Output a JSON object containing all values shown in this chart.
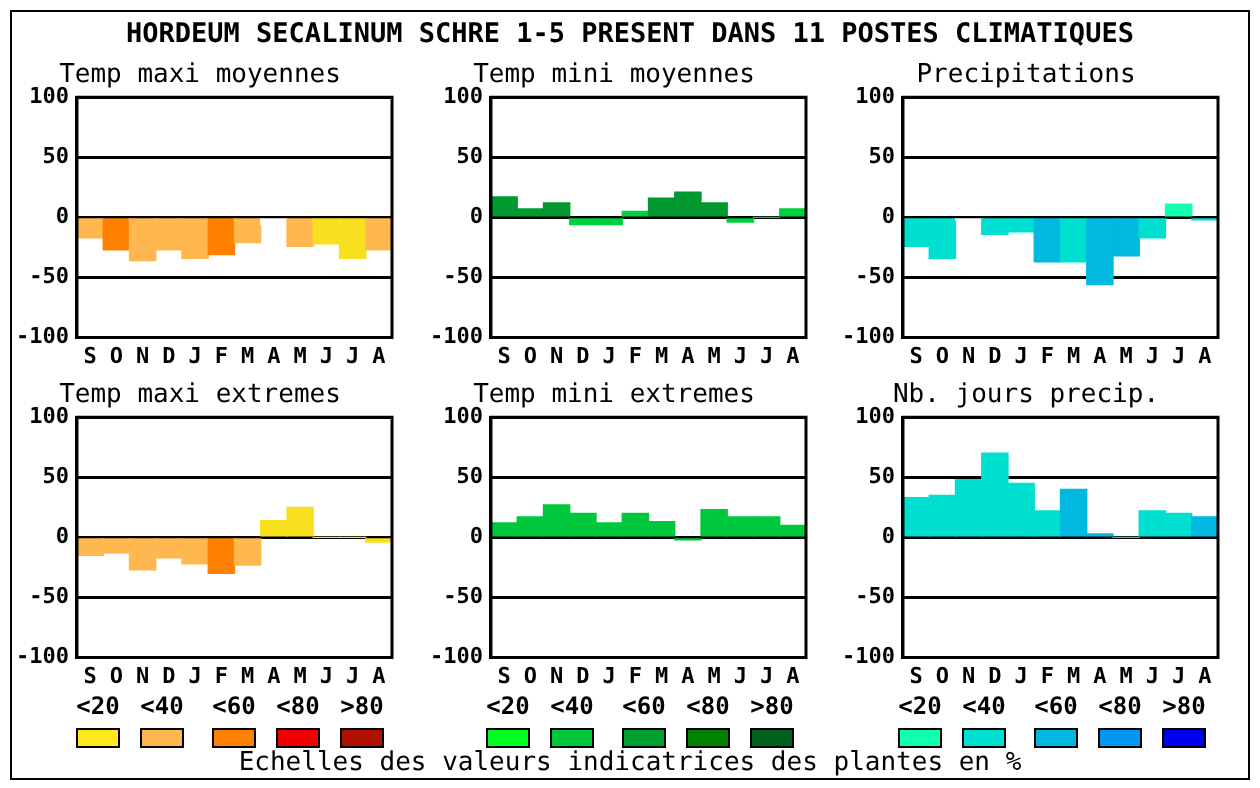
{
  "chart_data": [
    {
      "type": "other",
      "title": "HORDEUM SECALINUM SCHRE 1-5 PRESENT DANS  11 POSTES CLIMATIQUES"
    },
    {
      "type": "bar",
      "title": "Temp maxi moyennes",
      "categories": [
        "S",
        "O",
        "N",
        "D",
        "J",
        "F",
        "M",
        "A",
        "M",
        "J",
        "J",
        "A"
      ],
      "values": [
        -17,
        -27,
        -36,
        -27,
        -34,
        -31,
        -21,
        -6,
        -24,
        -22,
        -34,
        -27
      ],
      "colors": [
        "#ffb850",
        "#ff8000",
        "#ffb850",
        "#ffb850",
        "#ffb850",
        "#ff8000",
        "#ffb850",
        "#ffffff",
        "#ffb850",
        "#f8e020",
        "#f8e020",
        "#ffb850"
      ],
      "ylim": [
        -100,
        100
      ],
      "yticks": [
        -100,
        -50,
        0,
        50,
        100
      ],
      "grid": "y"
    },
    {
      "type": "bar",
      "title": "Temp mini moyennes",
      "categories": [
        "S",
        "O",
        "N",
        "D",
        "J",
        "F",
        "M",
        "A",
        "M",
        "J",
        "J",
        "A"
      ],
      "values": [
        17,
        7,
        12,
        -6,
        -6,
        5,
        16,
        21,
        12,
        -4,
        0,
        7
      ],
      "colors": [
        "#009a30",
        "#009a30",
        "#009a30",
        "#00d040",
        "#00d040",
        "#00d040",
        "#009a30",
        "#009a30",
        "#009a30",
        "#00d040",
        "#00d040",
        "#00d040"
      ],
      "ylim": [
        -100,
        100
      ],
      "yticks": [
        -100,
        -50,
        0,
        50,
        100
      ],
      "grid": "y"
    },
    {
      "type": "bar",
      "title": "Precipitations",
      "categories": [
        "S",
        "O",
        "N",
        "D",
        "J",
        "F",
        "M",
        "A",
        "M",
        "J",
        "J",
        "A"
      ],
      "values": [
        -24,
        -34,
        -2,
        -14,
        -12,
        -37,
        -37,
        -56,
        -32,
        -17,
        11,
        -2
      ],
      "colors": [
        "#00e0d0",
        "#00e0d0",
        "#ffffff",
        "#00e0d0",
        "#00e0d0",
        "#00b8e0",
        "#00e0d0",
        "#00b8e0",
        "#00b8e0",
        "#00e0d0",
        "#10ffb0",
        "#00e0d0"
      ],
      "ylim": [
        -100,
        100
      ],
      "yticks": [
        -100,
        -50,
        0,
        50,
        100
      ],
      "grid": "y"
    },
    {
      "type": "bar",
      "title": "Temp maxi extremes",
      "categories": [
        "S",
        "O",
        "N",
        "D",
        "J",
        "F",
        "M",
        "A",
        "M",
        "J",
        "J",
        "A"
      ],
      "values": [
        -15,
        -13,
        -27,
        -17,
        -22,
        -30,
        -23,
        14,
        25,
        0,
        0,
        -4
      ],
      "colors": [
        "#ffb850",
        "#ffb850",
        "#ffb850",
        "#ffb850",
        "#ffb850",
        "#ff8000",
        "#ffb850",
        "#f8e020",
        "#f8e020",
        "#f8e020",
        "#f8e020",
        "#f8e020"
      ],
      "ylim": [
        -100,
        100
      ],
      "yticks": [
        -100,
        -50,
        0,
        50,
        100
      ],
      "grid": "y"
    },
    {
      "type": "bar",
      "title": "Temp mini extremes",
      "categories": [
        "S",
        "O",
        "N",
        "D",
        "J",
        "F",
        "M",
        "A",
        "M",
        "J",
        "J",
        "A"
      ],
      "values": [
        12,
        17,
        27,
        20,
        12,
        20,
        13,
        -2,
        23,
        17,
        17,
        10
      ],
      "colors": [
        "#00c83c",
        "#00c83c",
        "#00c83c",
        "#00c83c",
        "#00c83c",
        "#00c83c",
        "#00c83c",
        "#00c83c",
        "#00c83c",
        "#00c83c",
        "#00c83c",
        "#00c83c"
      ],
      "ylim": [
        -100,
        100
      ],
      "yticks": [
        -100,
        -50,
        0,
        50,
        100
      ],
      "grid": "y"
    },
    {
      "type": "bar",
      "title": "Nb. jours precip.",
      "categories": [
        "S",
        "O",
        "N",
        "D",
        "J",
        "F",
        "M",
        "A",
        "M",
        "J",
        "J",
        "A"
      ],
      "values": [
        33,
        35,
        48,
        70,
        45,
        22,
        40,
        3,
        0,
        22,
        20,
        17
      ],
      "colors": [
        "#00e0d0",
        "#00e0d0",
        "#00e0d0",
        "#00e0d0",
        "#00e0d0",
        "#00e0d0",
        "#00b8e0",
        "#00b8e0",
        "#00e0d0",
        "#00e0d0",
        "#00e0d0",
        "#00b8e0"
      ],
      "ylim": [
        -100,
        100
      ],
      "yticks": [
        -100,
        -50,
        0,
        50,
        100
      ],
      "grid": "y"
    },
    {
      "type": "other",
      "title": "Echelles des valeurs indicatrices des plantes en %",
      "annotations": [
        "<20",
        "<40",
        "<60",
        "<80",
        ">80",
        "<20",
        "<40",
        "<60",
        "<80",
        ">80",
        "<20",
        "<40",
        "<60",
        "<80",
        ">80"
      ],
      "colors": [
        "#ffe820",
        "#ffb850",
        "#ff8000",
        "#f00000",
        "#b01000",
        "#00ff20",
        "#00c83c",
        "#00a030",
        "#008000",
        "#006020",
        "#10ffb0",
        "#00e0d0",
        "#00b8e0",
        "#0098f0",
        "#0000f0"
      ]
    }
  ]
}
